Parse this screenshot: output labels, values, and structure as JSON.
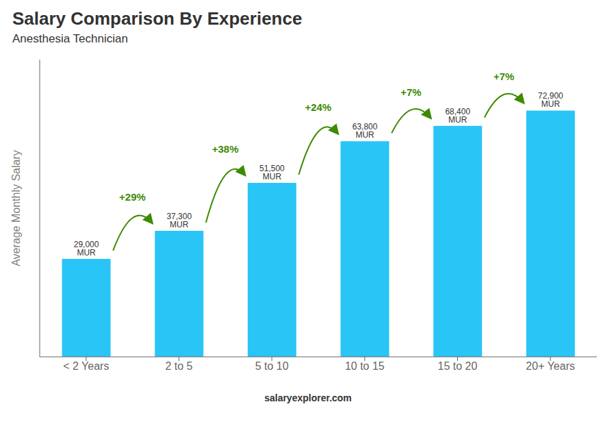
{
  "chart_data": {
    "type": "bar",
    "title": "Salary Comparison By Experience",
    "subtitle": "Anesthesia Technician",
    "y_label": "Average Monthly Salary",
    "source": "salaryexplorer.com",
    "categories": [
      "< 2 Years",
      "2 to 5",
      "5 to 10",
      "10 to 15",
      "15 to 20",
      "20+ Years"
    ],
    "values": [
      29000,
      37300,
      51500,
      63800,
      68400,
      72900
    ],
    "value_labels": [
      "29,000 MUR",
      "37,300 MUR",
      "51,500 MUR",
      "63,800 MUR",
      "68,400 MUR",
      "72,900 MUR"
    ],
    "data_labels": true,
    "color": "#29C5F6",
    "ylim": [
      0,
      88000
    ],
    "yticks": [],
    "tick_labels": "x",
    "grid": false,
    "annotations": [
      {
        "text": "+29%",
        "from": "< 2 Years",
        "to": "2 to 5"
      },
      {
        "text": "+38%",
        "from": "2 to 5",
        "to": "5 to 10"
      },
      {
        "text": "+24%",
        "from": "5 to 10",
        "to": "10 to 15"
      },
      {
        "text": "+7%",
        "from": "10 to 15",
        "to": "15 to 20"
      },
      {
        "text": "+7%",
        "from": "15 to 20",
        "to": "20+ Years"
      }
    ]
  }
}
